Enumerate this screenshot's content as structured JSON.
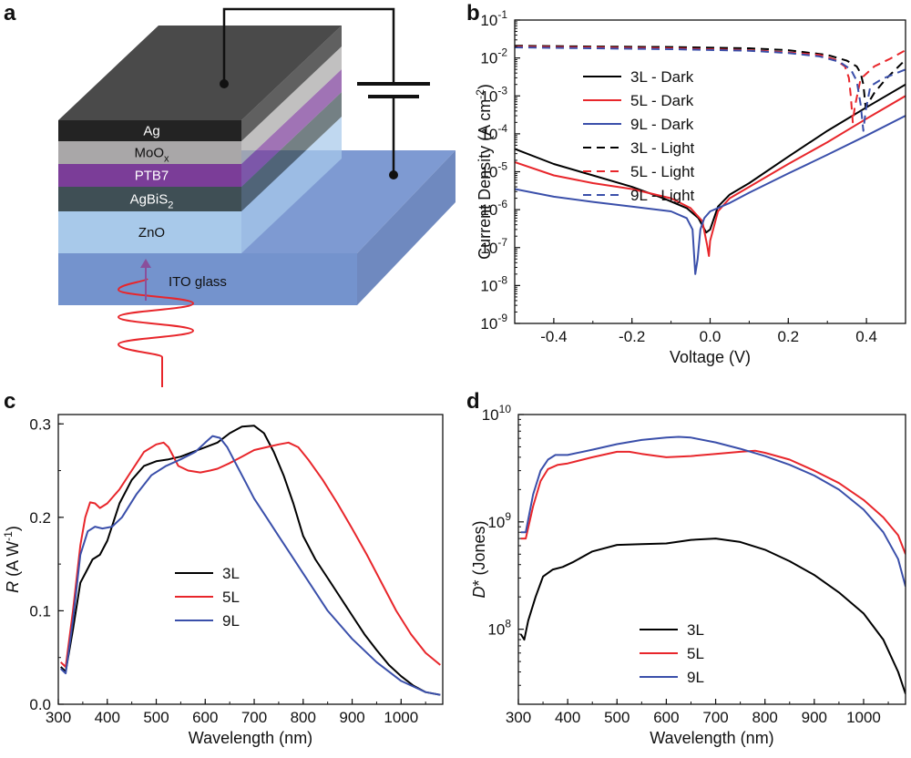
{
  "panels": {
    "a": "a",
    "b": "b",
    "c": "c",
    "d": "d"
  },
  "device": {
    "layers": [
      {
        "name": "Ag",
        "color": "#232323"
      },
      {
        "name": "MoO",
        "sub": "x",
        "color": "#a9a7a8"
      },
      {
        "name": "PTB7",
        "color": "#7b3d98"
      },
      {
        "name": "AgBiS",
        "sub": "2",
        "color": "#3f4f55"
      },
      {
        "name": "ZnO",
        "color": "#a8c9ea"
      }
    ],
    "substrate": "ITO glass",
    "substrate_color": "#7a98cf",
    "light_color": "#e8262b",
    "arrow_color": "#8a4f9b"
  },
  "chart_data": [
    {
      "type": "line",
      "panel": "b",
      "xlabel": "Voltage (V)",
      "ylabel": "Current Density (A cm",
      "ylabel_sup": "-2",
      "ylabel_end": ")",
      "xlim": [
        -0.5,
        0.5
      ],
      "ylim": [
        1e-09,
        0.1
      ],
      "yscale": "log",
      "xticks": [
        -0.4,
        -0.2,
        0.0,
        0.2,
        0.4
      ],
      "xtick_labels": [
        "-0.4",
        "-0.2",
        "0.0",
        "0.2",
        "0.4"
      ],
      "yticks": [
        -9,
        -8,
        -7,
        -6,
        -5,
        -4,
        -3,
        -2,
        -1
      ],
      "legend_position": "center-right",
      "series": [
        {
          "name": "3L - Dark",
          "color": "#000000",
          "dash": false,
          "x": [
            -0.5,
            -0.4,
            -0.3,
            -0.2,
            -0.12,
            -0.06,
            -0.03,
            -0.01,
            0.0,
            0.02,
            0.05,
            0.1,
            0.2,
            0.3,
            0.4,
            0.5
          ],
          "y": [
            4e-05,
            1.6e-05,
            8e-06,
            4e-06,
            2e-06,
            1.1e-06,
            6e-07,
            2.5e-07,
            3e-07,
            1.2e-06,
            2.5e-06,
            5e-06,
            2.5e-05,
            0.00012,
            0.0005,
            0.002
          ]
        },
        {
          "name": "5L - Dark",
          "color": "#e8262b",
          "dash": false,
          "x": [
            -0.5,
            -0.4,
            -0.3,
            -0.2,
            -0.1,
            -0.05,
            -0.02,
            -0.008,
            -0.003,
            0.0,
            0.02,
            0.05,
            0.1,
            0.2,
            0.3,
            0.4,
            0.5
          ],
          "y": [
            1.8e-05,
            8e-06,
            5e-06,
            3.5e-06,
            2e-06,
            1.1e-06,
            5e-07,
            1.2e-07,
            6e-08,
            1.5e-07,
            9e-07,
            2e-06,
            4e-06,
            1.6e-05,
            6e-05,
            0.00025,
            0.001
          ]
        },
        {
          "name": "9L - Dark",
          "color": "#3a4faa",
          "dash": false,
          "x": [
            -0.5,
            -0.4,
            -0.3,
            -0.2,
            -0.1,
            -0.06,
            -0.045,
            -0.038,
            -0.032,
            -0.025,
            -0.015,
            0.0,
            0.05,
            0.1,
            0.2,
            0.3,
            0.4,
            0.5
          ],
          "y": [
            3.5e-06,
            2.2e-06,
            1.6e-06,
            1.2e-06,
            9e-07,
            6e-07,
            3e-07,
            2e-08,
            5e-08,
            3e-07,
            6e-07,
            9e-07,
            1.5e-06,
            2.8e-06,
            9e-06,
            2.8e-05,
            9e-05,
            0.0003
          ]
        },
        {
          "name": "3L - Light",
          "color": "#000000",
          "dash": true,
          "x": [
            -0.5,
            -0.3,
            -0.1,
            0.1,
            0.2,
            0.3,
            0.35,
            0.375,
            0.385,
            0.392,
            0.398,
            0.42,
            0.45,
            0.5
          ],
          "y": [
            0.021,
            0.02,
            0.0195,
            0.018,
            0.016,
            0.012,
            0.0085,
            0.006,
            0.004,
            0.002,
            0.0005,
            0.0012,
            0.0028,
            0.009
          ]
        },
        {
          "name": "5L - Light",
          "color": "#e8262b",
          "dash": true,
          "x": [
            -0.5,
            -0.3,
            -0.1,
            0.1,
            0.2,
            0.28,
            0.32,
            0.345,
            0.355,
            0.36,
            0.365,
            0.37,
            0.385,
            0.42,
            0.46,
            0.5
          ],
          "y": [
            0.02,
            0.019,
            0.018,
            0.016,
            0.014,
            0.012,
            0.009,
            0.006,
            0.003,
            0.001,
            0.0002,
            0.0005,
            0.0028,
            0.006,
            0.0095,
            0.016
          ]
        },
        {
          "name": "9L - Light",
          "color": "#3a4faa",
          "dash": true,
          "x": [
            -0.5,
            -0.3,
            -0.1,
            0.1,
            0.2,
            0.28,
            0.33,
            0.36,
            0.375,
            0.385,
            0.392,
            0.398,
            0.41,
            0.44,
            0.5
          ],
          "y": [
            0.019,
            0.018,
            0.017,
            0.0155,
            0.0135,
            0.011,
            0.008,
            0.005,
            0.0025,
            0.0006,
            0.00012,
            0.0004,
            0.0018,
            0.0028,
            0.005
          ]
        }
      ]
    },
    {
      "type": "line",
      "panel": "c",
      "xlabel": "Wavelength (nm)",
      "ylabel_italic": "R",
      "ylabel_rest": " (A W",
      "ylabel_sup": "-1",
      "ylabel_end": ")",
      "xlim": [
        300,
        1085
      ],
      "ylim": [
        0,
        0.31
      ],
      "yscale": "linear",
      "xticks": [
        300,
        400,
        500,
        600,
        700,
        800,
        900,
        1000
      ],
      "xtick_labels": [
        "300",
        "400",
        "500",
        "600",
        "700",
        "800",
        "900",
        "1000"
      ],
      "yticks": [
        0.0,
        0.1,
        0.2,
        0.3
      ],
      "ytick_labels": [
        "0.0",
        "0.1",
        "0.2",
        "0.3"
      ],
      "legend_position": "center-left",
      "series": [
        {
          "name": "3L",
          "color": "#000000",
          "x": [
            305,
            315,
            330,
            345,
            355,
            370,
            385,
            400,
            425,
            450,
            475,
            500,
            525,
            550,
            575,
            600,
            625,
            650,
            675,
            700,
            720,
            740,
            760,
            780,
            800,
            825,
            850,
            875,
            900,
            925,
            950,
            975,
            1000,
            1025,
            1050,
            1080
          ],
          "y": [
            0.04,
            0.035,
            0.08,
            0.13,
            0.14,
            0.155,
            0.16,
            0.175,
            0.215,
            0.24,
            0.255,
            0.26,
            0.262,
            0.265,
            0.27,
            0.275,
            0.28,
            0.29,
            0.297,
            0.298,
            0.29,
            0.27,
            0.245,
            0.215,
            0.18,
            0.155,
            0.135,
            0.115,
            0.095,
            0.075,
            0.058,
            0.042,
            0.03,
            0.02,
            0.013,
            0.01
          ]
        },
        {
          "name": "5L",
          "color": "#e8262b",
          "x": [
            305,
            315,
            330,
            345,
            355,
            365,
            375,
            385,
            400,
            425,
            450,
            475,
            500,
            515,
            525,
            545,
            565,
            590,
            610,
            625,
            650,
            675,
            700,
            725,
            750,
            770,
            790,
            810,
            840,
            870,
            900,
            930,
            960,
            990,
            1020,
            1050,
            1080
          ],
          "y": [
            0.045,
            0.04,
            0.1,
            0.17,
            0.2,
            0.216,
            0.215,
            0.21,
            0.215,
            0.23,
            0.25,
            0.27,
            0.278,
            0.28,
            0.275,
            0.255,
            0.25,
            0.248,
            0.25,
            0.252,
            0.258,
            0.265,
            0.272,
            0.275,
            0.278,
            0.28,
            0.275,
            0.262,
            0.24,
            0.215,
            0.188,
            0.16,
            0.13,
            0.1,
            0.075,
            0.055,
            0.042
          ]
        },
        {
          "name": "9L",
          "color": "#3a4faa",
          "x": [
            305,
            315,
            330,
            345,
            360,
            375,
            390,
            410,
            430,
            460,
            490,
            520,
            550,
            580,
            600,
            615,
            630,
            645,
            660,
            680,
            700,
            725,
            750,
            775,
            800,
            850,
            900,
            950,
            1000,
            1050,
            1080
          ],
          "y": [
            0.038,
            0.033,
            0.09,
            0.16,
            0.185,
            0.19,
            0.188,
            0.19,
            0.2,
            0.225,
            0.245,
            0.255,
            0.262,
            0.27,
            0.28,
            0.287,
            0.285,
            0.275,
            0.26,
            0.24,
            0.22,
            0.2,
            0.18,
            0.16,
            0.14,
            0.1,
            0.07,
            0.045,
            0.025,
            0.013,
            0.01
          ]
        }
      ]
    },
    {
      "type": "line",
      "panel": "d",
      "xlabel": "Wavelength (nm)",
      "ylabel_italic": "D",
      "ylabel_rest": "* (Jones)",
      "xlim": [
        300,
        1085
      ],
      "ylim": [
        20000000.0,
        10000000000.0
      ],
      "yscale": "log",
      "xticks": [
        300,
        400,
        500,
        600,
        700,
        800,
        900,
        1000
      ],
      "xtick_labels": [
        "300",
        "400",
        "500",
        "600",
        "700",
        "800",
        "900",
        "1000"
      ],
      "yticks": [
        8,
        9,
        10
      ],
      "legend_position": "lower-left",
      "series": [
        {
          "name": "3L",
          "color": "#000000",
          "x": [
            305,
            312,
            320,
            335,
            350,
            370,
            390,
            410,
            450,
            500,
            550,
            600,
            650,
            700,
            750,
            800,
            850,
            900,
            950,
            1000,
            1040,
            1070,
            1085
          ],
          "y": [
            90000000.0,
            80000000.0,
            120000000.0,
            200000000.0,
            310000000.0,
            360000000.0,
            380000000.0,
            420000000.0,
            530000000.0,
            610000000.0,
            620000000.0,
            630000000.0,
            680000000.0,
            700000000.0,
            650000000.0,
            550000000.0,
            430000000.0,
            320000000.0,
            220000000.0,
            140000000.0,
            80000000.0,
            40000000.0,
            25000000.0
          ]
        },
        {
          "name": "5L",
          "color": "#e8262b",
          "x": [
            305,
            315,
            330,
            345,
            360,
            380,
            400,
            450,
            500,
            525,
            550,
            600,
            650,
            700,
            750,
            780,
            800,
            850,
            900,
            950,
            1000,
            1040,
            1070,
            1085
          ],
          "y": [
            700000000.0,
            700000000.0,
            1400000000.0,
            2400000000.0,
            3100000000.0,
            3400000000.0,
            3500000000.0,
            4000000000.0,
            4500000000.0,
            4500000000.0,
            4300000000.0,
            4000000000.0,
            4100000000.0,
            4300000000.0,
            4500000000.0,
            4600000000.0,
            4400000000.0,
            3800000000.0,
            3000000000.0,
            2300000000.0,
            1600000000.0,
            1100000000.0,
            750000000.0,
            500000000.0
          ]
        },
        {
          "name": "9L",
          "color": "#3a4faa",
          "x": [
            305,
            315,
            330,
            345,
            360,
            375,
            400,
            450,
            500,
            550,
            600,
            625,
            650,
            700,
            750,
            800,
            850,
            900,
            950,
            1000,
            1040,
            1070,
            1085
          ],
          "y": [
            800000000.0,
            800000000.0,
            1800000000.0,
            3000000000.0,
            3800000000.0,
            4200000000.0,
            4200000000.0,
            4700000000.0,
            5300000000.0,
            5800000000.0,
            6100000000.0,
            6200000000.0,
            6100000000.0,
            5500000000.0,
            4800000000.0,
            4100000000.0,
            3400000000.0,
            2700000000.0,
            2000000000.0,
            1300000000.0,
            800000000.0,
            450000000.0,
            250000000.0
          ]
        }
      ]
    }
  ]
}
